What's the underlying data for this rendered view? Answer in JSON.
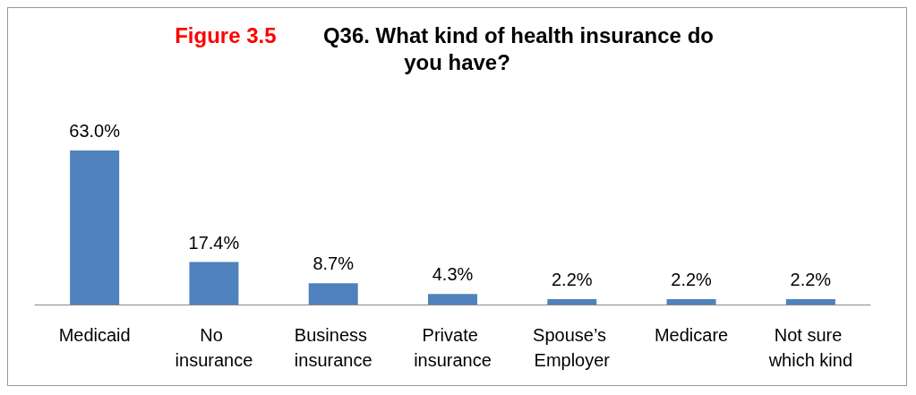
{
  "chart_data": {
    "type": "bar",
    "title": "Figure 3.5 Q36. What kind of health insurance do you have?",
    "categories": [
      "Medicaid",
      "No insurance",
      "Business insurance",
      "Private insurance",
      "Spouse’s Employer",
      "Medicare",
      "Not sure which kind"
    ],
    "values": [
      63.0,
      17.4,
      8.7,
      4.3,
      2.2,
      2.2,
      2.2
    ],
    "value_labels": [
      "63.0%",
      "17.4%",
      "8.7%",
      "4.3%",
      "2.2%",
      "2.2%",
      "2.2%"
    ],
    "color": "#4f81bd"
  }
}
